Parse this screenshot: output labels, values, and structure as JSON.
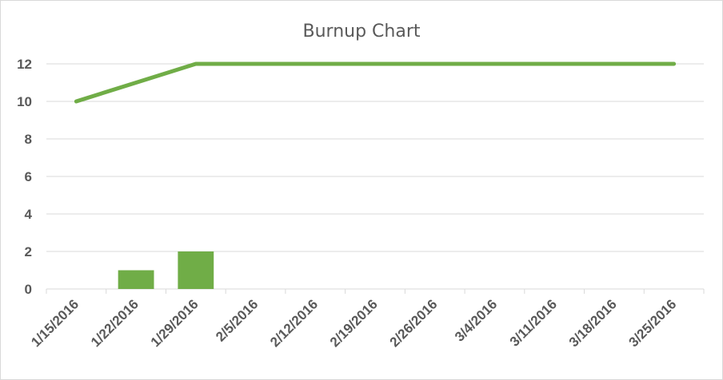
{
  "chart_data": {
    "type": "bar+line",
    "title": "Burnup Chart",
    "xlabel": "",
    "ylabel": "",
    "categories": [
      "1/15/2016",
      "1/22/2016",
      "1/29/2016",
      "2/5/2016",
      "2/12/2016",
      "2/19/2016",
      "2/26/2016",
      "3/4/2016",
      "3/11/2016",
      "3/18/2016",
      "3/25/2016"
    ],
    "ylim": [
      0,
      12
    ],
    "yticks": [
      0,
      2,
      4,
      6,
      8,
      10,
      12
    ],
    "grid": true,
    "legend": "none",
    "series": [
      {
        "type": "bar",
        "color": "#70ad47",
        "values": [
          0,
          1,
          2,
          0,
          0,
          0,
          0,
          0,
          0,
          0,
          0
        ]
      },
      {
        "type": "line",
        "color": "#70ad47",
        "values": [
          10,
          11,
          12,
          12,
          12,
          12,
          12,
          12,
          12,
          12,
          12
        ]
      }
    ]
  }
}
